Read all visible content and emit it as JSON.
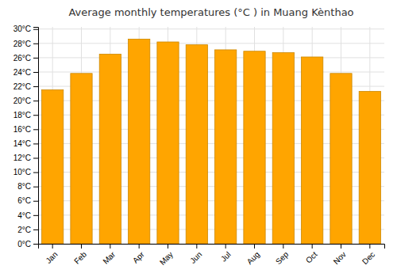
{
  "chart_data": {
    "type": "bar",
    "title": "Average monthly temperatures (°C ) in Muang Kènthao",
    "categories": [
      "Jan",
      "Feb",
      "Mar",
      "Apr",
      "May",
      "Jun",
      "Jul",
      "Aug",
      "Sep",
      "Oct",
      "Nov",
      "Dec"
    ],
    "values": [
      21.5,
      23.8,
      26.5,
      28.6,
      28.2,
      27.8,
      27.1,
      26.9,
      26.7,
      26.1,
      23.8,
      21.3
    ],
    "color": "#FFA500",
    "ylim": [
      0,
      30.3
    ],
    "yticks": [
      {
        "value": 0,
        "label": "0°C"
      },
      {
        "value": 2,
        "label": "2°C"
      },
      {
        "value": 4,
        "label": "4°C"
      },
      {
        "value": 6,
        "label": "6°C"
      },
      {
        "value": 8,
        "label": "8°C"
      },
      {
        "value": 10,
        "label": "10°C"
      },
      {
        "value": 12,
        "label": "12°C"
      },
      {
        "value": 14,
        "label": "14°C"
      },
      {
        "value": 16,
        "label": "16°C"
      },
      {
        "value": 18,
        "label": "18°C"
      },
      {
        "value": 20,
        "label": "20°C"
      },
      {
        "value": 22,
        "label": "22°C"
      },
      {
        "value": 24,
        "label": "24°C"
      },
      {
        "value": 26,
        "label": "26°C"
      },
      {
        "value": 28,
        "label": "28°C"
      },
      {
        "value": 30,
        "label": "30°C"
      }
    ],
    "grid": true
  }
}
